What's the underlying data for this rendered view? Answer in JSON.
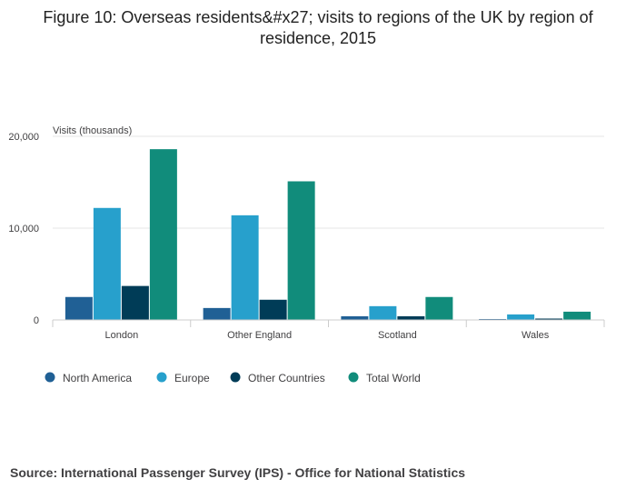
{
  "title": "Figure 10: Overseas residents&#x27; visits to regions of the UK by region of residence, 2015",
  "source": "Source: International Passenger Survey (IPS) - Office for National Statistics",
  "chart_data": {
    "type": "bar",
    "title": "Figure 10: Overseas residents&#x27; visits to regions of the UK by region of residence, 2015",
    "ylabel": "Visits (thousands)",
    "xlabel": "",
    "ylim": [
      0,
      20000
    ],
    "yticks": [
      0,
      10000,
      20000
    ],
    "ytick_labels": [
      "0",
      "10,000",
      "20,000"
    ],
    "categories": [
      "London",
      "Other England",
      "Scotland",
      "Wales"
    ],
    "series": [
      {
        "name": "North America",
        "color": "#206095",
        "values": [
          2500,
          1300,
          400,
          100
        ]
      },
      {
        "name": "Europe",
        "color": "#27a0cc",
        "values": [
          12200,
          11400,
          1500,
          600
        ]
      },
      {
        "name": "Other Countries",
        "color": "#003c57",
        "values": [
          3700,
          2200,
          400,
          150
        ]
      },
      {
        "name": "Total World",
        "color": "#118c7b",
        "values": [
          18600,
          15100,
          2500,
          900
        ]
      }
    ],
    "grid": true,
    "legend_position": "bottom-left"
  }
}
